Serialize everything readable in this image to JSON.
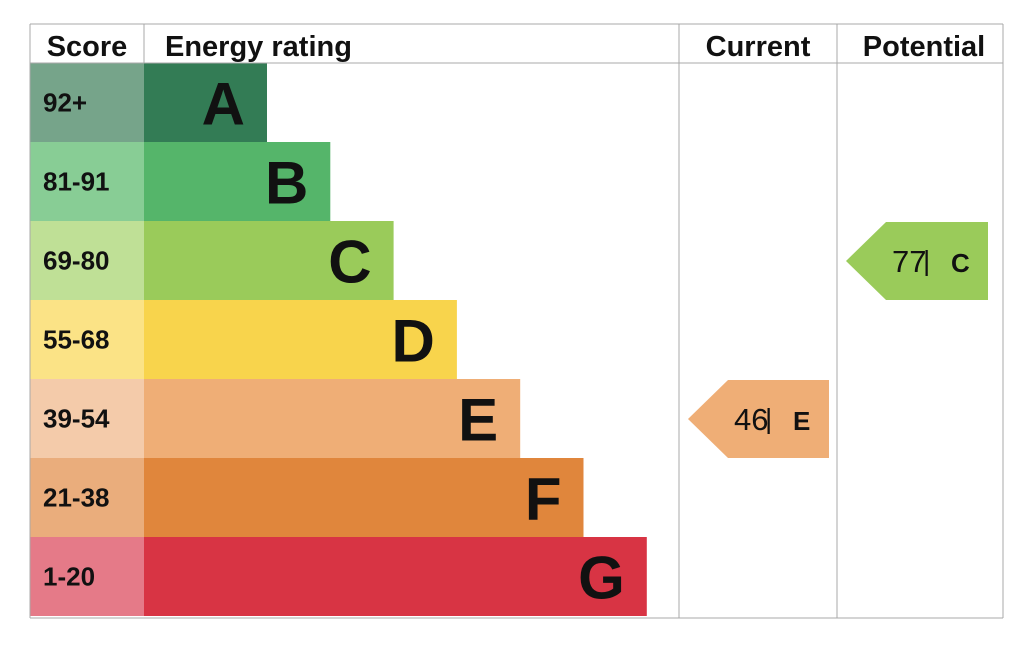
{
  "chart_data": {
    "type": "bar",
    "headers": {
      "score": "Score",
      "rating": "Energy rating",
      "current": "Current",
      "potential": "Potential"
    },
    "bands": [
      {
        "score": "92+",
        "letter": "A",
        "color": "#337c55",
        "score_bg": "#76a48a"
      },
      {
        "score": "81-91",
        "letter": "B",
        "color": "#55b56a",
        "score_bg": "#88cd95"
      },
      {
        "score": "69-80",
        "letter": "C",
        "color": "#9acb5a",
        "score_bg": "#bfe096"
      },
      {
        "score": "55-68",
        "letter": "D",
        "color": "#f8d44c",
        "score_bg": "#fbe386"
      },
      {
        "score": "39-54",
        "letter": "E",
        "color": "#efae76",
        "score_bg": "#f4cbaa"
      },
      {
        "score": "21-38",
        "letter": "F",
        "color": "#e0863c",
        "score_bg": "#eaad7c"
      },
      {
        "score": "1-20",
        "letter": "G",
        "color": "#d83444",
        "score_bg": "#e57a88"
      }
    ],
    "current": {
      "value": "46",
      "separator": "|",
      "letter": "E",
      "color": "#efae76"
    },
    "potential": {
      "value": "77",
      "separator": "|",
      "letter": "C",
      "color": "#9acb5a"
    }
  }
}
